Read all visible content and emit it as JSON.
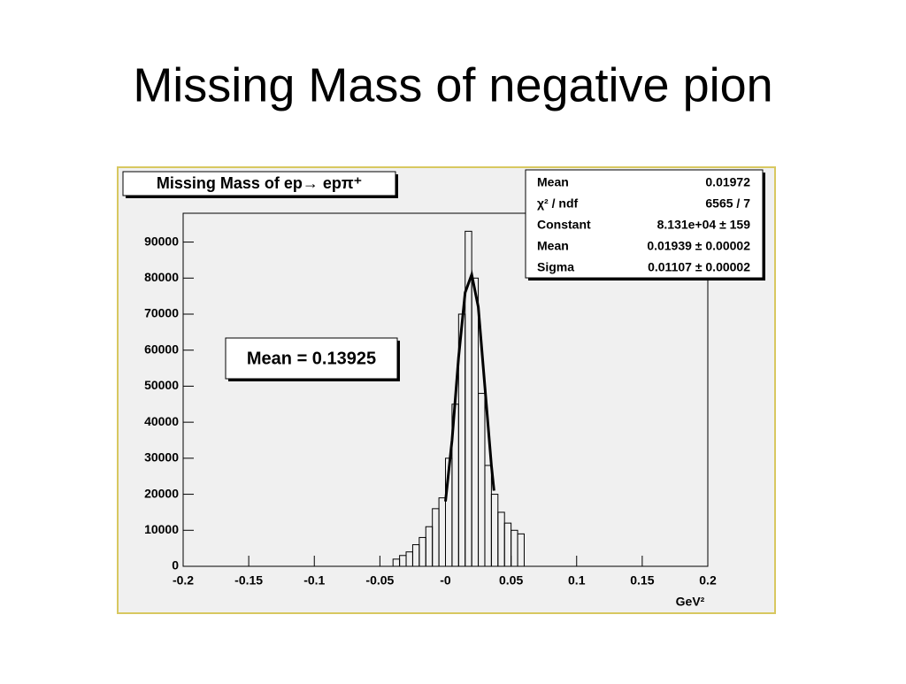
{
  "slide_title": "Missing Mass of negative pion",
  "chart_data": {
    "type": "histogram",
    "title": "Missing Mass of ep→ epπ⁺",
    "x_label": "GeV²",
    "bins": [
      -0.04,
      -0.035,
      -0.03,
      -0.025,
      -0.02,
      -0.015,
      -0.01,
      -0.005,
      0,
      0.005,
      0.01,
      0.015,
      0.02,
      0.025,
      0.03,
      0.035,
      0.04,
      0.045,
      0.05,
      0.055,
      0.06
    ],
    "values": [
      2000,
      3000,
      4000,
      6000,
      8000,
      11000,
      16000,
      19000,
      30000,
      45000,
      70000,
      93000,
      80000,
      48000,
      28000,
      20000,
      15000,
      12000,
      10000,
      9000
    ],
    "color": "#000000",
    "fit": {
      "x": [
        0,
        0.005,
        0.01,
        0.015,
        0.02,
        0.025,
        0.03,
        0.035,
        0.037
      ],
      "y": [
        18000,
        35000,
        58000,
        76000,
        81000,
        72000,
        50000,
        28000,
        21000
      ],
      "color": "#000000"
    },
    "xlim": [
      -0.2,
      0.2
    ],
    "xticks": [
      -0.2,
      -0.15,
      -0.1,
      -0.05,
      {
        "value": 0,
        "label": "-0"
      },
      0.05,
      0.1,
      0.15,
      0.2
    ],
    "ylim": [
      0,
      98000
    ],
    "yticks": [
      0,
      10000,
      20000,
      30000,
      40000,
      50000,
      60000,
      70000,
      80000,
      90000
    ],
    "annotation": "Mean = 0.13925",
    "stats": [
      {
        "label": "Mean",
        "value": "0.01972"
      },
      {
        "label": "χ² / ndf",
        "value": "6565 / 7"
      },
      {
        "label": "Constant",
        "value": "8.131e+04 ± 159"
      },
      {
        "label": "Mean",
        "value": "0.01939 ± 0.00002"
      },
      {
        "label": "Sigma",
        "value": "0.01107 ± 0.00002"
      }
    ]
  }
}
